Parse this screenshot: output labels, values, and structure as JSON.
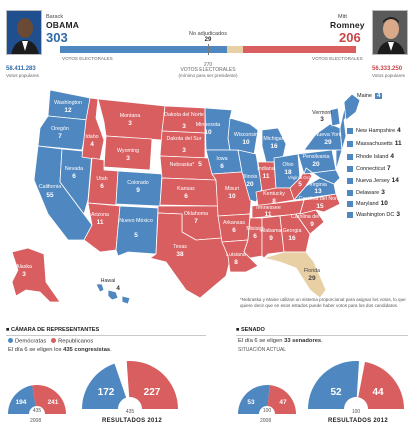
{
  "header": {
    "obama": {
      "first": "Barack",
      "last": "OBAMA",
      "ev": "303",
      "votes_label": "VOTOS ELECTORALES",
      "popular": "58.411.283",
      "popular_label": "Votos populares"
    },
    "romney": {
      "first": "Mitt",
      "last": "Romney",
      "ev": "206",
      "votes_label": "VOTOS ELECTORALES",
      "popular": "56.333.250",
      "popular_label": "Votos populares"
    },
    "unassigned_label": "No adjudicados",
    "unassigned": "29",
    "threshold": "270",
    "threshold_label": "VOTOS ELECTORALES",
    "threshold_sub": "(mínimo para ser presidente)",
    "obama_share": 0.5632,
    "unassigned_share": 0.0539
  },
  "colors": {
    "democrat": "#4f87c1",
    "republican": "#d85e60",
    "unassigned": "#e9cfa4"
  },
  "map": {
    "states": [
      {
        "name": "Washington",
        "ev": "12",
        "party": "D"
      },
      {
        "name": "Oregón",
        "ev": "7",
        "party": "D"
      },
      {
        "name": "California",
        "ev": "55",
        "party": "D"
      },
      {
        "name": "Nevada",
        "ev": "6",
        "party": "D"
      },
      {
        "name": "Idaho",
        "ev": "4",
        "party": "R"
      },
      {
        "name": "Montana",
        "ev": "3",
        "party": "R"
      },
      {
        "name": "Wyoming",
        "ev": "3",
        "party": "R"
      },
      {
        "name": "Utah",
        "ev": "6",
        "party": "R"
      },
      {
        "name": "Arizona",
        "ev": "11",
        "party": "R"
      },
      {
        "name": "Colorado",
        "ev": "9",
        "party": "D"
      },
      {
        "name": "Nuevo México",
        "ev": "5",
        "party": "D"
      },
      {
        "name": "Dakota del Norte",
        "ev": "3",
        "party": "R"
      },
      {
        "name": "Dakota del Sur",
        "ev": "3",
        "party": "R"
      },
      {
        "name": "Nebraska*",
        "ev": "5",
        "party": "R"
      },
      {
        "name": "Kansas",
        "ev": "6",
        "party": "R"
      },
      {
        "name": "Oklahoma",
        "ev": "7",
        "party": "R"
      },
      {
        "name": "Texas",
        "ev": "38",
        "party": "R"
      },
      {
        "name": "Minnesota",
        "ev": "10",
        "party": "D"
      },
      {
        "name": "Iowa",
        "ev": "6",
        "party": "D"
      },
      {
        "name": "Misuri",
        "ev": "10",
        "party": "R"
      },
      {
        "name": "Arkansas",
        "ev": "6",
        "party": "R"
      },
      {
        "name": "Luisiana",
        "ev": "8",
        "party": "R"
      },
      {
        "name": "Wisconsin",
        "ev": "10",
        "party": "D"
      },
      {
        "name": "Illinois",
        "ev": "20",
        "party": "D"
      },
      {
        "name": "Michigan",
        "ev": "16",
        "party": "D"
      },
      {
        "name": "Indiana",
        "ev": "11",
        "party": "R"
      },
      {
        "name": "Ohio",
        "ev": "18",
        "party": "D"
      },
      {
        "name": "Kentucky",
        "ev": "8",
        "party": "R"
      },
      {
        "name": "Tennessee",
        "ev": "11",
        "party": "R"
      },
      {
        "name": "Misisipi",
        "ev": "6",
        "party": "R"
      },
      {
        "name": "Alabama",
        "ev": "9",
        "party": "R"
      },
      {
        "name": "Georgia",
        "ev": "16",
        "party": "R"
      },
      {
        "name": "Florida",
        "ev": "29",
        "party": "U"
      },
      {
        "name": "Carolina del Sur",
        "ev": "9",
        "party": "R"
      },
      {
        "name": "Carolina del Norte",
        "ev": "15",
        "party": "R"
      },
      {
        "name": "Virginia",
        "ev": "13",
        "party": "D"
      },
      {
        "name": "Virginia Occ.",
        "ev": "5",
        "party": "R"
      },
      {
        "name": "Pensilvania",
        "ev": "20",
        "party": "D"
      },
      {
        "name": "Nueva York",
        "ev": "29",
        "party": "D"
      },
      {
        "name": "Vermont",
        "ev": "3",
        "party": "D"
      },
      {
        "name": "Maine",
        "ev": "4",
        "party": "D"
      },
      {
        "name": "Alaska",
        "ev": "3",
        "party": "R"
      },
      {
        "name": "Hawai",
        "ev": "4",
        "party": "D"
      }
    ],
    "northeast": [
      {
        "name": "New Hampshire",
        "ev": "4"
      },
      {
        "name": "Massachusetts",
        "ev": "11"
      },
      {
        "name": "Rhode Island",
        "ev": "4"
      },
      {
        "name": "Connecticut",
        "ev": "7"
      },
      {
        "name": "Nueva Jersey",
        "ev": "14"
      },
      {
        "name": "Delaware",
        "ev": "3"
      },
      {
        "name": "Maryland",
        "ev": "10"
      },
      {
        "name": "Washington DC",
        "ev": "3"
      }
    ],
    "note": "*Nebraska y Maine utilizan un sistema proporcional para asignar los votos, lo que quiere decir que en esos estados puede haber votos para los dos candidatos."
  },
  "house": {
    "title": "CÁMARA DE REPRESENTANTES",
    "legend_dem": "Demócratas",
    "legend_rep": "Republicanos",
    "sentence_pre": "El día 6 se eligen los ",
    "sentence_bold": "435 congresistas",
    "sentence_post": ".",
    "prev": {
      "dem": "194",
      "rep": "241",
      "total": "435",
      "year": "2008"
    },
    "result": {
      "dem": "172",
      "rep": "227",
      "total": "435",
      "label": "RESULTADOS 2012"
    }
  },
  "senate": {
    "title": "SENADO",
    "sentence_pre": "El día 6 se eligen ",
    "sentence_bold": "33 senadores",
    "sentence_post": ".",
    "sub": "SITUACIÓN ACTUAL",
    "prev": {
      "dem": "53",
      "rep": "47",
      "total": "100",
      "year": "2008"
    },
    "result": {
      "dem": "52",
      "rep": "44",
      "total": "100",
      "label": "RESULTADOS 2012"
    }
  }
}
